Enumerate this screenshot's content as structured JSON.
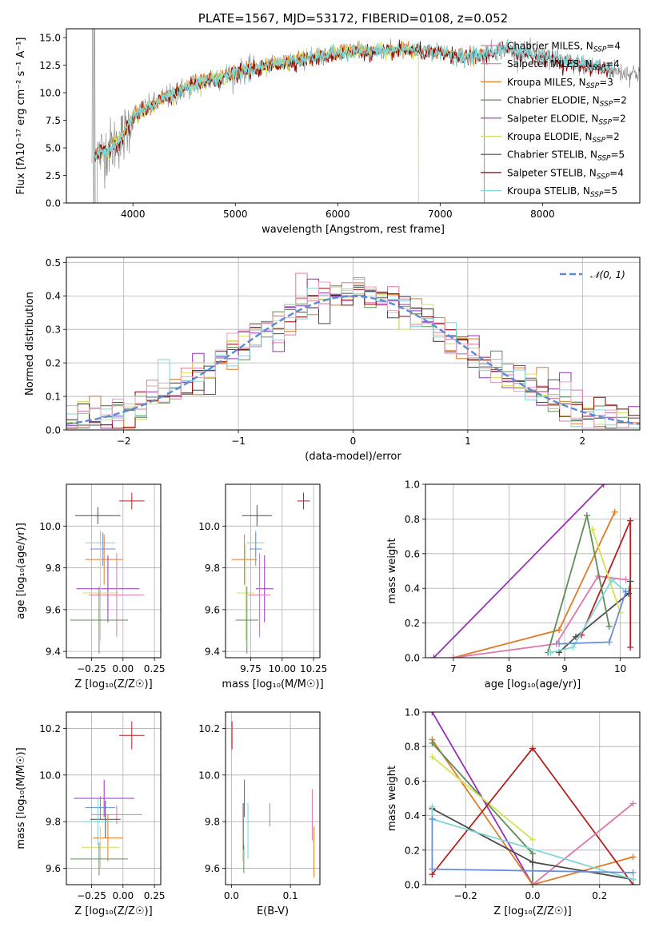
{
  "palette": [
    "#4c4c4c",
    "#8b0000",
    "#7fd6d6",
    "#e07b27",
    "#9632b8",
    "#d4e157",
    "#dd77aa",
    "#5f8d5a",
    "#6a8fd8"
  ],
  "chart_data": [
    {
      "id": "spectrum",
      "type": "line",
      "title": "PLATE=1567, MJD=53172, FIBERID=0108, z=0.052",
      "xlabel": "wavelength [Angstrom, rest frame]",
      "ylabel": "Flux [fλ10⁻¹⁷ erg cm⁻² s⁻¹ A⁻¹]",
      "xlim": [
        3350,
        8950
      ],
      "ylim": [
        0,
        15.8
      ],
      "xticks": [
        4000,
        5000,
        6000,
        7000,
        8000
      ],
      "yticks": [
        0.0,
        2.5,
        5.0,
        7.5,
        10.0,
        12.5,
        15.0
      ],
      "grid": false,
      "legend_position": "top-right",
      "legend": [
        {
          "label": "Chabrier MILES, N",
          "sub": "SSP",
          "tail": "=4",
          "color": "#dd77aa"
        },
        {
          "label": "Salpeter MILES, N",
          "sub": "SSP",
          "tail": "=4",
          "color": "#dd77aa"
        },
        {
          "label": "Kroupa MILES, N",
          "sub": "SSP",
          "tail": "=3",
          "color": "#e07b27"
        },
        {
          "label": "Chabrier ELODIE, N",
          "sub": "SSP",
          "tail": "=2",
          "color": "#5f8d5a"
        },
        {
          "label": "Salpeter ELODIE, N",
          "sub": "SSP",
          "tail": "=2",
          "color": "#9632b8"
        },
        {
          "label": "Kroupa ELODIE, N",
          "sub": "SSP",
          "tail": "=2",
          "color": "#d4e157"
        },
        {
          "label": "Chabrier STELIB, N",
          "sub": "SSP",
          "tail": "=5",
          "color": "#4c4c4c"
        },
        {
          "label": "Salpeter STELIB, N",
          "sub": "SSP",
          "tail": "=4",
          "color": "#8b0000"
        },
        {
          "label": "Kroupa STELIB, N",
          "sub": "SSP",
          "tail": "=5",
          "color": "#7fd6d6"
        }
      ],
      "continuum_points": {
        "x": [
          3600,
          3700,
          3800,
          3900,
          4000,
          4100,
          4200,
          4300,
          4400,
          4500,
          4600,
          4700,
          4800,
          4900,
          5000,
          5200,
          5400,
          5600,
          5800,
          6000,
          6200,
          6400,
          6600,
          6800,
          7000,
          7200,
          7400,
          7600,
          7800,
          8000,
          8200,
          8400,
          8600,
          8800
        ],
        "y": [
          4.0,
          4.6,
          5.2,
          6.0,
          7.8,
          8.4,
          8.9,
          9.5,
          9.8,
          10.4,
          10.8,
          11.0,
          11.2,
          11.5,
          11.8,
          12.2,
          12.6,
          13.0,
          13.2,
          13.6,
          13.8,
          13.7,
          13.9,
          13.8,
          13.6,
          13.2,
          13.4,
          14.0,
          13.6,
          13.3,
          12.8,
          12.5,
          12.2,
          11.8
        ]
      },
      "model_end_x": {
        "MILES": 7430,
        "ELODIE": 6790,
        "STELIB": 8700
      }
    },
    {
      "id": "residuals",
      "type": "line",
      "xlabel": "(data-model)/error",
      "ylabel": "Normed distribution",
      "xlim": [
        -2.5,
        2.5
      ],
      "ylim": [
        0,
        0.515
      ],
      "xticks": [
        -2,
        -1,
        0,
        1,
        2
      ],
      "yticks": [
        0.0,
        0.1,
        0.2,
        0.3,
        0.4,
        0.5
      ],
      "grid": true,
      "legend_position": "top-right",
      "legend": [
        {
          "label": "𝒩(0, 1)",
          "color": "#5b8bd6"
        }
      ],
      "bin_width": 0.1
    },
    {
      "id": "age_vs_Z",
      "type": "scatter",
      "xlabel": "Z [log₁₀(Z/Z☉)]",
      "ylabel": "age [log₁₀(age/yr)]",
      "xlim": [
        -0.45,
        0.3
      ],
      "ylim": [
        9.37,
        10.2
      ],
      "xticks": [
        -0.25,
        0.0,
        0.25
      ],
      "xtick_labels": [
        "−0.25",
        "0.00",
        "0.25"
      ],
      "yticks": [
        9.4,
        9.6,
        9.8,
        10.0
      ],
      "ytick_labels": [
        "9.4",
        "9.6",
        "9.8",
        "10.0"
      ],
      "grid": true,
      "points": [
        {
          "x": 0.07,
          "xerr": 0.1,
          "y": 10.12,
          "yerr": 0.04,
          "color": "#b22222"
        },
        {
          "x": -0.2,
          "xerr": 0.18,
          "y": 10.05,
          "yerr": 0.04,
          "color": "#4c4c4c"
        },
        {
          "x": -0.18,
          "xerr": 0.12,
          "y": 9.92,
          "yerr": 0.06,
          "color": "#7fd6d6"
        },
        {
          "x": -0.16,
          "xerr": 0.1,
          "y": 9.89,
          "yerr": 0.08,
          "color": "#6a8fd8"
        },
        {
          "x": -0.15,
          "xerr": 0.15,
          "y": 9.84,
          "yerr": 0.12,
          "color": "#e07b27"
        },
        {
          "x": -0.12,
          "xerr": 0.25,
          "y": 9.7,
          "yerr": 0.16,
          "color": "#9632b8"
        },
        {
          "x": -0.18,
          "xerr": 0.14,
          "y": 9.68,
          "yerr": 0.23,
          "color": "#d4e157"
        },
        {
          "x": -0.05,
          "xerr": 0.22,
          "y": 9.67,
          "yerr": 0.2,
          "color": "#dd77aa"
        },
        {
          "x": -0.19,
          "xerr": 0.23,
          "y": 9.55,
          "yerr": 0.16,
          "color": "#5f8d5a"
        }
      ]
    },
    {
      "id": "age_vs_mass",
      "type": "scatter",
      "xlabel": "mass [log₁₀(M/M☉)]",
      "ylabel": "",
      "xlim": [
        9.55,
        10.3
      ],
      "ylim": [
        9.37,
        10.2
      ],
      "xticks": [
        9.75,
        10.0,
        10.25
      ],
      "xtick_labels": [
        "9.75",
        "10.00",
        "10.25"
      ],
      "yticks": [
        9.4,
        9.6,
        9.8,
        10.0
      ],
      "ytick_labels": [
        "9.4",
        "9.6",
        "9.8",
        "10.0"
      ],
      "grid": true,
      "points": [
        {
          "x": 10.17,
          "xerr": 0.05,
          "y": 10.12,
          "yerr": 0.04,
          "color": "#b22222"
        },
        {
          "x": 9.8,
          "xerr": 0.12,
          "y": 10.05,
          "yerr": 0.05,
          "color": "#4c4c4c"
        },
        {
          "x": 9.79,
          "xerr": 0.07,
          "y": 9.92,
          "yerr": 0.06,
          "color": "#7fd6d6"
        },
        {
          "x": 9.79,
          "xerr": 0.05,
          "y": 9.89,
          "yerr": 0.08,
          "color": "#6a8fd8"
        },
        {
          "x": 9.7,
          "xerr": 0.1,
          "y": 9.84,
          "yerr": 0.12,
          "color": "#e07b27"
        },
        {
          "x": 9.86,
          "xerr": 0.07,
          "y": 9.7,
          "yerr": 0.16,
          "color": "#9632b8"
        },
        {
          "x": 9.71,
          "xerr": 0.07,
          "y": 9.68,
          "yerr": 0.23,
          "color": "#d4e157"
        },
        {
          "x": 9.82,
          "xerr": 0.09,
          "y": 9.67,
          "yerr": 0.2,
          "color": "#dd77aa"
        },
        {
          "x": 9.72,
          "xerr": 0.09,
          "y": 9.55,
          "yerr": 0.16,
          "color": "#5f8d5a"
        }
      ]
    },
    {
      "id": "mass_weight_vs_age",
      "type": "line",
      "xlabel": "age [log₁₀(age/yr)]",
      "ylabel": "mass weight",
      "xlim": [
        6.5,
        10.35
      ],
      "ylim": [
        0.0,
        1.0
      ],
      "xticks": [
        7,
        8,
        9,
        10
      ],
      "xtick_labels": [
        "7",
        "8",
        "9",
        "10"
      ],
      "yticks": [
        0.0,
        0.2,
        0.4,
        0.6,
        0.8,
        1.0
      ],
      "ytick_labels": [
        "0.0",
        "0.2",
        "0.4",
        "0.6",
        "0.8",
        "1.0"
      ],
      "grid": true,
      "series": [
        {
          "color": "#9632b8",
          "x": [
            6.65,
            9.7
          ],
          "y": [
            0.0,
            1.0
          ]
        },
        {
          "color": "#e07b27",
          "x": [
            7.0,
            8.9,
            9.9
          ],
          "y": [
            0.0,
            0.16,
            0.84
          ]
        },
        {
          "color": "#dd77aa",
          "x": [
            7.0,
            8.85,
            9.6,
            10.1
          ],
          "y": [
            0.0,
            0.08,
            0.47,
            0.45
          ]
        },
        {
          "color": "#b22222",
          "x": [
            9.3,
            10.18,
            10.18,
            10.18
          ],
          "y": [
            0.13,
            0.79,
            0.44,
            0.06
          ]
        },
        {
          "color": "#4c4c4c",
          "x": [
            8.9,
            9.2,
            10.15,
            10.18
          ],
          "y": [
            0.03,
            0.12,
            0.37,
            0.44
          ]
        },
        {
          "color": "#5f8d5a",
          "x": [
            8.7,
            9.4,
            9.8
          ],
          "y": [
            0.03,
            0.82,
            0.18
          ]
        },
        {
          "color": "#d4e157",
          "x": [
            9.5,
            10.0
          ],
          "y": [
            0.74,
            0.26
          ]
        },
        {
          "color": "#7fd6d6",
          "x": [
            8.75,
            9.15,
            9.85,
            10.1
          ],
          "y": [
            0.03,
            0.06,
            0.45,
            0.38
          ]
        },
        {
          "color": "#6a8fd8",
          "x": [
            8.9,
            9.8,
            10.1
          ],
          "y": [
            0.08,
            0.09,
            0.38
          ]
        }
      ]
    },
    {
      "id": "mass_vs_Z",
      "type": "scatter",
      "xlabel": "Z [log₁₀(Z/Z☉)]",
      "ylabel": "mass [log₁₀(M/M☉)]",
      "xlim": [
        -0.45,
        0.3
      ],
      "ylim": [
        9.53,
        10.27
      ],
      "xticks": [
        -0.25,
        0.0,
        0.25
      ],
      "xtick_labels": [
        "−0.25",
        "0.00",
        "0.25"
      ],
      "yticks": [
        9.6,
        9.8,
        10.0,
        10.2
      ],
      "ytick_labels": [
        "9.6",
        "9.8",
        "10.0",
        "10.2"
      ],
      "grid": true,
      "points": [
        {
          "x": 0.07,
          "xerr": 0.1,
          "y": 10.17,
          "yerr": 0.06,
          "color": "#b22222"
        },
        {
          "x": -0.15,
          "xerr": 0.24,
          "y": 9.9,
          "yerr": 0.08,
          "color": "#9632b8"
        },
        {
          "x": -0.18,
          "xerr": 0.12,
          "y": 9.86,
          "yerr": 0.05,
          "color": "#6a8fd8"
        },
        {
          "x": -0.05,
          "xerr": 0.2,
          "y": 9.83,
          "yerr": 0.04,
          "color": "#dd77aa"
        },
        {
          "x": -0.14,
          "xerr": 0.12,
          "y": 9.81,
          "yerr": 0.08,
          "color": "#4c4c4c"
        },
        {
          "x": -0.2,
          "xerr": 0.12,
          "y": 9.8,
          "yerr": 0.1,
          "color": "#7fd6d6"
        },
        {
          "x": -0.12,
          "xerr": 0.12,
          "y": 9.73,
          "yerr": 0.1,
          "color": "#e07b27"
        },
        {
          "x": -0.18,
          "xerr": 0.15,
          "y": 9.69,
          "yerr": 0.09,
          "color": "#d4e157"
        },
        {
          "x": -0.19,
          "xerr": 0.23,
          "y": 9.64,
          "yerr": 0.07,
          "color": "#5f8d5a"
        }
      ]
    },
    {
      "id": "mass_vs_ebv",
      "type": "scatter",
      "xlabel": "E(B-V)",
      "ylabel": "",
      "xlim": [
        -0.01,
        0.15
      ],
      "ylim": [
        9.53,
        10.27
      ],
      "xticks": [
        0.0,
        0.1
      ],
      "xtick_labels": [
        "0.0",
        "0.1"
      ],
      "yticks": [
        9.6,
        9.8,
        10.0,
        10.2
      ],
      "ytick_labels": [
        "9.6",
        "9.8",
        "10.0",
        "10.2"
      ],
      "grid": true,
      "points": [
        {
          "x": 0.001,
          "y": 10.17,
          "yerr": 0.06,
          "color": "#b22222"
        },
        {
          "x": 0.022,
          "y": 9.9,
          "yerr": 0.08,
          "color": "#9632b8"
        },
        {
          "x": 0.065,
          "y": 9.83,
          "yerr": 0.05,
          "color": "#6a8fd8"
        },
        {
          "x": 0.137,
          "y": 9.83,
          "yerr": 0.11,
          "color": "#dd77aa"
        },
        {
          "x": 0.02,
          "y": 9.78,
          "yerr": 0.1,
          "color": "#4c4c4c"
        },
        {
          "x": 0.028,
          "y": 9.76,
          "yerr": 0.12,
          "color": "#7fd6d6"
        },
        {
          "x": 0.14,
          "y": 9.67,
          "yerr": 0.11,
          "color": "#e07b27"
        },
        {
          "x": 0.019,
          "y": 9.69,
          "yerr": 0.06,
          "color": "#d4e157"
        },
        {
          "x": 0.021,
          "y": 9.64,
          "yerr": 0.06,
          "color": "#5f8d5a"
        }
      ]
    },
    {
      "id": "mass_weight_vs_Z",
      "type": "line",
      "xlabel": "Z [log₁₀(Z/Z☉)]",
      "ylabel": "mass weight",
      "xlim": [
        -0.32,
        0.32
      ],
      "ylim": [
        0.0,
        1.0
      ],
      "xticks": [
        -0.2,
        0.0,
        0.2
      ],
      "xtick_labels": [
        "−0.2",
        "0.0",
        "0.2"
      ],
      "yticks": [
        0.0,
        0.2,
        0.4,
        0.6,
        0.8,
        1.0
      ],
      "ytick_labels": [
        "0.0",
        "0.2",
        "0.4",
        "0.6",
        "0.8",
        "1.0"
      ],
      "grid": true,
      "series": [
        {
          "color": "#9632b8",
          "x": [
            -0.3,
            0.0
          ],
          "y": [
            1.0,
            0.0
          ]
        },
        {
          "color": "#e07b27",
          "x": [
            -0.3,
            0.0,
            0.3
          ],
          "y": [
            0.84,
            0.0,
            0.16
          ]
        },
        {
          "color": "#5f8d5a",
          "x": [
            -0.3,
            0.0,
            0.0
          ],
          "y": [
            0.82,
            0.18,
            0.0
          ]
        },
        {
          "color": "#d4e157",
          "x": [
            -0.3,
            0.0
          ],
          "y": [
            0.74,
            0.26
          ]
        },
        {
          "color": "#b22222",
          "x": [
            -0.3,
            0.0,
            0.3
          ],
          "y": [
            0.06,
            0.79,
            0.0
          ]
        },
        {
          "color": "#dd77aa",
          "x": [
            0.0,
            0.3
          ],
          "y": [
            0.0,
            0.47
          ]
        },
        {
          "color": "#4c4c4c",
          "x": [
            -0.3,
            0.0,
            0.3
          ],
          "y": [
            0.44,
            0.13,
            0.03
          ]
        },
        {
          "color": "#7fd6d6",
          "x": [
            -0.3,
            -0.3,
            0.3
          ],
          "y": [
            0.45,
            0.38,
            0.03
          ]
        },
        {
          "color": "#6a8fd8",
          "x": [
            -0.3,
            -0.3,
            0.0,
            0.3
          ],
          "y": [
            0.38,
            0.09,
            0.08,
            0.07
          ]
        }
      ]
    }
  ]
}
